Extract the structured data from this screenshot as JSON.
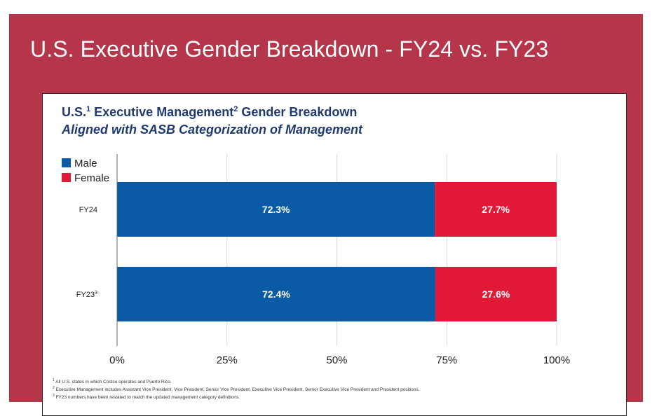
{
  "slide": {
    "title": "U.S. Executive Gender Breakdown - FY24 vs. FY23",
    "background": "#b5364a"
  },
  "chart_data": {
    "type": "bar",
    "orientation": "horizontal",
    "stacked": true,
    "title": "U.S.",
    "title_sup": "1",
    "title_mid": " Executive Management",
    "title_sup2": "2",
    "title_end": " Gender Breakdown",
    "subtitle": "Aligned with SASB Categorization of Management",
    "categories": [
      "FY24",
      "FY23"
    ],
    "category_sups": [
      "",
      "3"
    ],
    "series": [
      {
        "name": "Male",
        "values": [
          72.3,
          72.4
        ],
        "labels": [
          "72.3%",
          "72.4%"
        ],
        "color": "#0b5aa6"
      },
      {
        "name": "Female",
        "values": [
          27.7,
          27.6
        ],
        "labels": [
          "27.7%",
          "27.6%"
        ],
        "color": "#e21837"
      }
    ],
    "xlim": [
      0,
      100
    ],
    "xticks": [
      0,
      25,
      50,
      75,
      100
    ],
    "xtick_labels": [
      "0%",
      "25%",
      "50%",
      "75%",
      "100%"
    ],
    "grid": true,
    "legend_position": "top-left"
  },
  "footnotes": [
    {
      "sup": "1",
      "text": " All U.S. states in which Costco operates and Puerto Rico."
    },
    {
      "sup": "2",
      "text": " Executive Management includes Assistant Vice President, Vice President, Senior Vice President, Executive Vice President, Senior Executive Vice President and President positions."
    },
    {
      "sup": "3",
      "text": " FY23 numbers have been restated to match the updated management category definitions."
    }
  ]
}
